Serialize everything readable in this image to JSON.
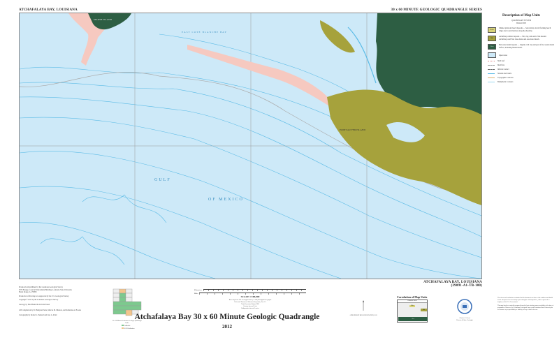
{
  "header": {
    "left_title": "ATCHAFALAYA BAY, LOUISIANA",
    "right_title": "30 x 60 MINUTE GEOLOGIC QUADRANGLE SERIES"
  },
  "map": {
    "labels": {
      "marsh_island": "MARSH ISLAND",
      "point_au_fer": "POINT AU FER ISLAND",
      "east_cote_blanche": "EAST COTE BLANCHE BAY",
      "gulf": "GULF",
      "of_mexico": "OF MEXICO"
    },
    "colors": {
      "water": "#cde9f8",
      "contour": "#5bbbe6",
      "holocene_marsh": "#2d5e43",
      "deltaic_marsh": "#a6a23c",
      "beach": "#f6c9c0",
      "frame": "#888888"
    }
  },
  "sheet_label": {
    "name": "ATCHAFALAYA BAY, LOUISIANA",
    "code": "(29091-A1-TB-100)"
  },
  "legend": {
    "title": "Description of Map Units",
    "system": "QUATERNARY SYSTEM",
    "series": "HOLOCENE",
    "units": [
      {
        "symbol": "Hcbs",
        "color": "#d9d47a",
        "text": "Chénier plain and beach deposits — Sand, shell, and silt forming beach ridges and coastal barriers along the shoreline."
      },
      {
        "symbol": "Hdd",
        "color": "#a6a23c",
        "text": "Atchafalaya deltaic deposits — Silt, clay, and sand of the modern Atchafalaya and Wax Lake deltas and associated marsh."
      },
      {
        "symbol": "Hcm",
        "color": "#2d5e43",
        "text": "Holocene marsh deposits — Organic-rich clay and peat of the coastal marsh surface, including Marsh Island."
      }
    ],
    "lines": [
      {
        "label": "Open water",
        "icon": "water-swatch"
      },
      {
        "label": "Shell reef",
        "icon": "reef-symbol"
      },
      {
        "label": "Mud flats",
        "icon": "mudflat-symbol"
      },
      {
        "label": "Inferred contact",
        "icon": "contact-line"
      },
      {
        "label": "Streams and canals",
        "icon": "stream-line"
      },
      {
        "label": "Topographic contours",
        "icon": "contour-line"
      },
      {
        "label": "Bathymetric contours",
        "icon": "bathymetric-line"
      }
    ]
  },
  "credits": [
    "Produced and published by the Louisiana Geological Survey",
    "3079 Energy, Coast & Environment Building, Louisiana State University",
    "Baton Rouge, LA 70803",
    "Production of this map was supported by the U.S. Geological Survey",
    "Copyright ©2012 by the Louisiana Geological Survey",
    "Geology by Paul Heinrich and John Snead",
    "GIS compilation by R. Hampton Peele, Marcus M. Munson, and Katherine A. Brooks",
    "Cartography by Robert L. Paulsell and Lisa G. Pond"
  ],
  "index_map": {
    "caption": "30 x 60 Minute Louisiana Geologic Quadrangle Index",
    "legend": [
      "Published",
      "2012 Publication"
    ]
  },
  "scale": {
    "label": "SCALE 1:100,000",
    "units": [
      "Kilometers",
      "Miles"
    ],
    "notes": [
      "Base map from U.S. Geological Survey 1:100,000 digital line graphs",
      "Universal Transverse Mercator Projection, Zone 15",
      "North American Datum 1983",
      "Contour interval 5 feet",
      "Bathymetric interval 1 meter"
    ]
  },
  "title": {
    "main": "Atchafalaya Bay 30 x 60 Minute Geologic Quadrangle",
    "year": "2012"
  },
  "declination": {
    "label": "APPROXIMATE MEAN DECLINATION, 2012"
  },
  "correlation": {
    "title": "Correlation of Map Units",
    "header": "Holocene Series",
    "units": [
      "Hcbs",
      "Hdd",
      "Hcm"
    ]
  },
  "seal": {
    "name": "Charles G. Groat",
    "role": "Director & State Geologist"
  },
  "disclaimer": [
    "The views and conclusions contained in this document are those of the authors and should not be interpreted as necessarily representing the official policies, either expressed or implied, of the U.S. Government.",
    "This map has been carefully prepared from the best existing sources available at the time of preparation. However, the Louisiana Geological Survey and Louisiana State University do not assume any responsibility or liability for any reliance thereon."
  ]
}
